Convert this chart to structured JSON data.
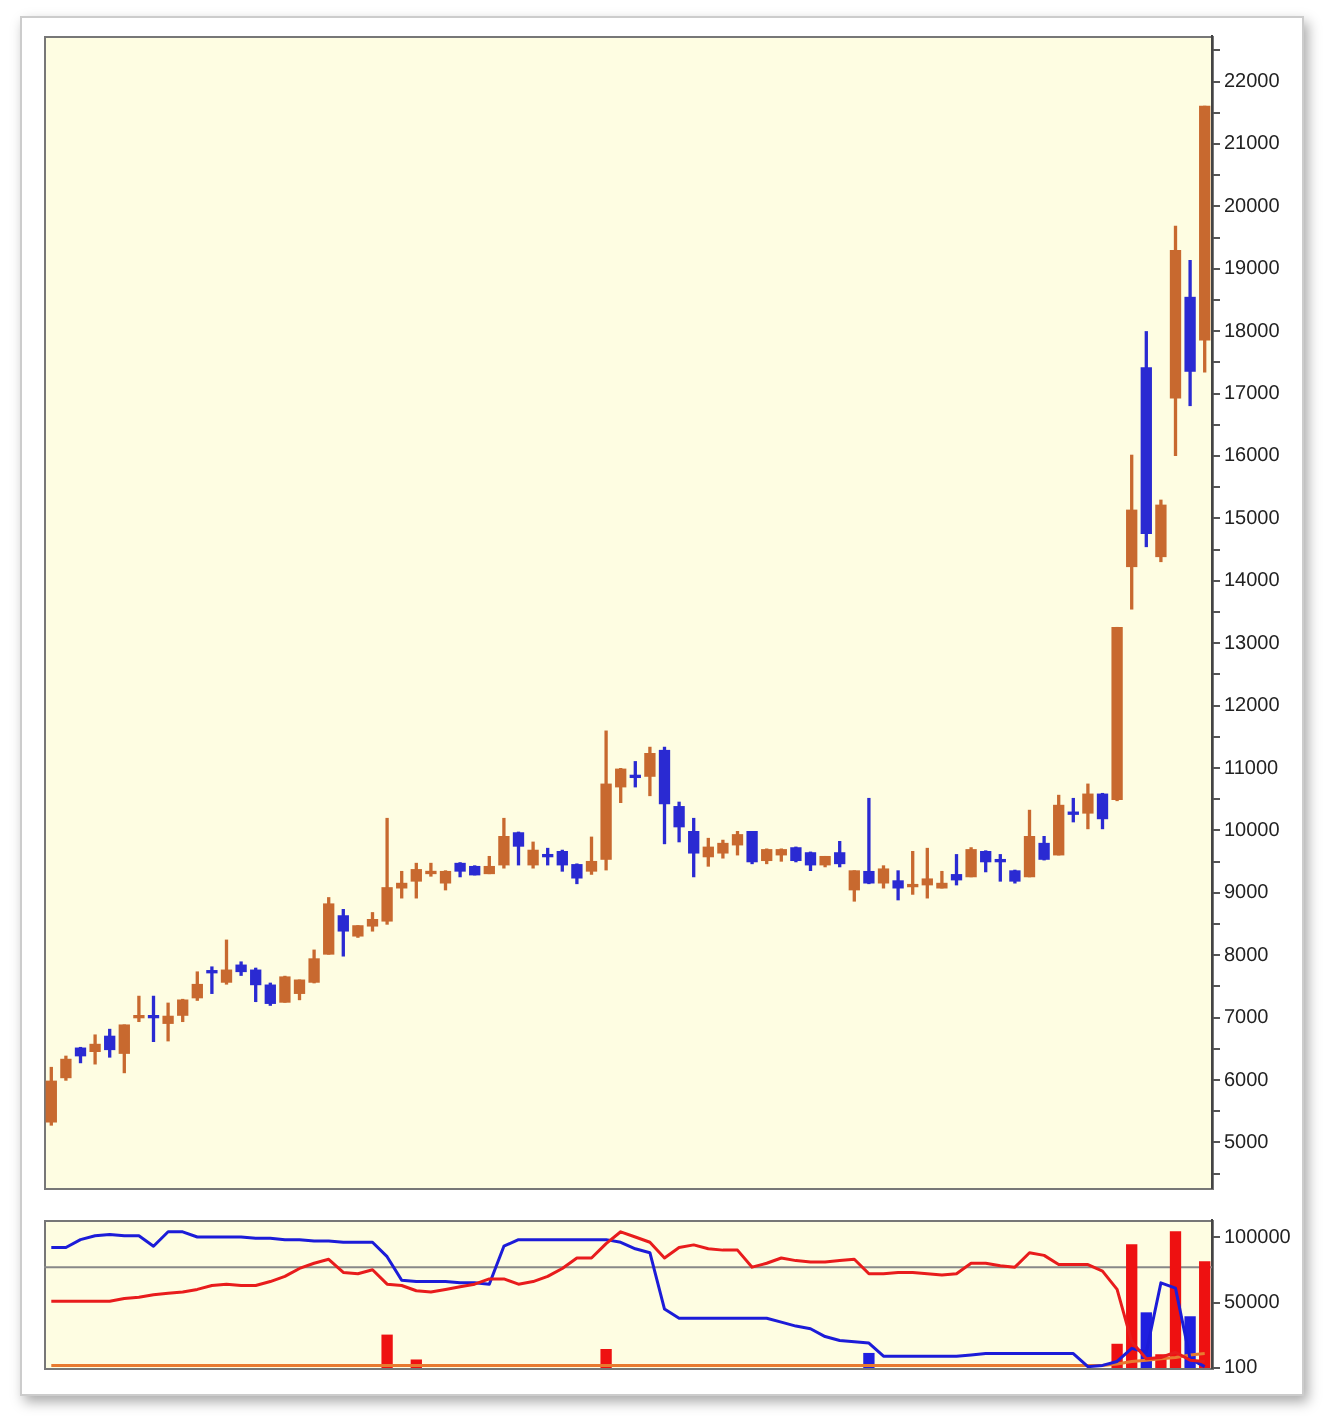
{
  "chart_data": [
    {
      "type": "candlestick",
      "categories": [
        null,
        null,
        null,
        null,
        null,
        null,
        null,
        null,
        null,
        null,
        null,
        null,
        null,
        null,
        null,
        null,
        null,
        null,
        null,
        null,
        null,
        null,
        null,
        null,
        null,
        null,
        null,
        null,
        null,
        null,
        null,
        null,
        null,
        null,
        null,
        null,
        null,
        null,
        null,
        null,
        null,
        null,
        null,
        null,
        null,
        null,
        null,
        null,
        null,
        null,
        null,
        null,
        null,
        null,
        null,
        null,
        null,
        null,
        null,
        null,
        null,
        null,
        null,
        null,
        null,
        null,
        null,
        null,
        null,
        null,
        null,
        null,
        null,
        null,
        null,
        null,
        null,
        null,
        null,
        null
      ],
      "ohlc": [
        [
          5330,
          6200,
          5280,
          5980
        ],
        [
          6040,
          6380,
          6000,
          6330
        ],
        [
          6510,
          6520,
          6280,
          6390
        ],
        [
          6460,
          6720,
          6260,
          6570
        ],
        [
          6700,
          6810,
          6370,
          6490
        ],
        [
          6430,
          6880,
          6120,
          6880
        ],
        [
          7000,
          7340,
          6940,
          7020
        ],
        [
          7030,
          7340,
          6620,
          7000
        ],
        [
          6910,
          7230,
          6630,
          7020
        ],
        [
          7040,
          7290,
          6940,
          7280
        ],
        [
          7320,
          7730,
          7280,
          7530
        ],
        [
          7740,
          7810,
          7390,
          7720
        ],
        [
          7570,
          8240,
          7540,
          7760
        ],
        [
          7840,
          7890,
          7680,
          7740
        ],
        [
          7760,
          7790,
          7260,
          7530
        ],
        [
          7520,
          7550,
          7200,
          7230
        ],
        [
          7250,
          7660,
          7250,
          7650
        ],
        [
          7390,
          7600,
          7290,
          7600
        ],
        [
          7570,
          8080,
          7560,
          7940
        ],
        [
          8020,
          8920,
          8020,
          8820
        ],
        [
          8630,
          8730,
          7990,
          8390
        ],
        [
          8310,
          8470,
          8290,
          8470
        ],
        [
          8470,
          8680,
          8390,
          8570
        ],
        [
          8550,
          10190,
          8500,
          9080
        ],
        [
          9080,
          9340,
          8920,
          9150
        ],
        [
          9190,
          9470,
          8920,
          9370
        ],
        [
          9310,
          9470,
          9270,
          9320
        ],
        [
          9160,
          9350,
          9050,
          9340
        ],
        [
          9470,
          9480,
          9260,
          9350
        ],
        [
          9420,
          9430,
          9290,
          9290
        ],
        [
          9310,
          9580,
          9310,
          9420
        ],
        [
          9450,
          10190,
          9400,
          9900
        ],
        [
          9960,
          9970,
          9450,
          9750
        ],
        [
          9450,
          9810,
          9400,
          9680
        ],
        [
          9590,
          9710,
          9450,
          9580
        ],
        [
          9660,
          9680,
          9350,
          9450
        ],
        [
          9450,
          9460,
          9150,
          9240
        ],
        [
          9350,
          9890,
          9300,
          9500
        ],
        [
          9540,
          11590,
          9370,
          10740
        ],
        [
          10700,
          10990,
          10450,
          10980
        ],
        [
          10870,
          11100,
          10700,
          10850
        ],
        [
          10870,
          11330,
          10560,
          11230
        ],
        [
          11280,
          11330,
          9790,
          10430
        ],
        [
          10380,
          10450,
          9820,
          10060
        ],
        [
          9980,
          10190,
          9260,
          9640
        ],
        [
          9580,
          9870,
          9430,
          9730
        ],
        [
          9640,
          9840,
          9560,
          9790
        ],
        [
          9770,
          9980,
          9610,
          9930
        ],
        [
          9980,
          9980,
          9470,
          9500
        ],
        [
          9520,
          9700,
          9470,
          9690
        ],
        [
          9610,
          9700,
          9510,
          9690
        ],
        [
          9720,
          9730,
          9500,
          9520
        ],
        [
          9640,
          9650,
          9360,
          9450
        ],
        [
          9450,
          9580,
          9420,
          9580
        ],
        [
          9640,
          9820,
          9420,
          9470
        ],
        [
          9050,
          9350,
          8870,
          9350
        ],
        [
          9340,
          10510,
          9150,
          9160
        ],
        [
          9160,
          9430,
          9080,
          9380
        ],
        [
          9190,
          9350,
          8890,
          9080
        ],
        [
          9100,
          9660,
          8980,
          9120
        ],
        [
          9130,
          9710,
          8920,
          9220
        ],
        [
          9080,
          9340,
          9080,
          9150
        ],
        [
          9290,
          9610,
          9130,
          9210
        ],
        [
          9260,
          9720,
          9260,
          9690
        ],
        [
          9660,
          9670,
          9340,
          9500
        ],
        [
          9510,
          9610,
          9190,
          9500
        ],
        [
          9350,
          9360,
          9160,
          9190
        ],
        [
          9260,
          10320,
          9260,
          9900
        ],
        [
          9790,
          9900,
          9530,
          9540
        ],
        [
          9610,
          10560,
          9610,
          10400
        ],
        [
          10280,
          10510,
          10140,
          10260
        ],
        [
          10280,
          10740,
          10030,
          10580
        ],
        [
          10580,
          10590,
          10030,
          10190
        ],
        [
          10500,
          13250,
          10480,
          13250
        ],
        [
          14230,
          16010,
          13550,
          15130
        ],
        [
          17410,
          17990,
          14550,
          14760
        ],
        [
          14390,
          15290,
          14310,
          15210
        ],
        [
          16930,
          19680,
          16010,
          19290
        ],
        [
          18540,
          19130,
          16810,
          17360
        ],
        [
          17860,
          21600,
          17350,
          21600
        ]
      ],
      "colors": [
        "#c8692f",
        "#c8692f",
        "#2a2ad2",
        "#c8692f",
        "#2a2ad2",
        "#c8692f",
        "#c8692f",
        "#2a2ad2",
        "#c8692f",
        "#c8692f",
        "#c8692f",
        "#2a2ad2",
        "#c8692f",
        "#2a2ad2",
        "#2a2ad2",
        "#2a2ad2",
        "#c8692f",
        "#c8692f",
        "#c8692f",
        "#c8692f",
        "#2a2ad2",
        "#c8692f",
        "#c8692f",
        "#c8692f",
        "#c8692f",
        "#c8692f",
        "#c8692f",
        "#c8692f",
        "#2a2ad2",
        "#2a2ad2",
        "#c8692f",
        "#c8692f",
        "#2a2ad2",
        "#c8692f",
        "#2a2ad2",
        "#2a2ad2",
        "#2a2ad2",
        "#c8692f",
        "#c8692f",
        "#c8692f",
        "#2a2ad2",
        "#c8692f",
        "#2a2ad2",
        "#2a2ad2",
        "#2a2ad2",
        "#c8692f",
        "#c8692f",
        "#c8692f",
        "#2a2ad2",
        "#c8692f",
        "#c8692f",
        "#2a2ad2",
        "#2a2ad2",
        "#c8692f",
        "#2a2ad2",
        "#c8692f",
        "#2a2ad2",
        "#c8692f",
        "#2a2ad2",
        "#c8692f",
        "#c8692f",
        "#c8692f",
        "#2a2ad2",
        "#c8692f",
        "#2a2ad2",
        "#2a2ad2",
        "#2a2ad2",
        "#c8692f",
        "#2a2ad2",
        "#c8692f",
        "#2a2ad2",
        "#c8692f",
        "#2a2ad2",
        "#c8692f",
        "#c8692f",
        "#2a2ad2",
        "#c8692f",
        "#c8692f",
        "#2a2ad2",
        "#c8692f"
      ],
      "ylim": [
        4270,
        22730
      ],
      "yticks": [
        {
          "value": 4500,
          "label": null
        },
        5000,
        {
          "value": 5500,
          "label": null
        },
        6000,
        {
          "value": 6500,
          "label": null
        },
        7000,
        {
          "value": 7500,
          "label": null
        },
        8000,
        {
          "value": 8500,
          "label": null
        },
        9000,
        {
          "value": 9500,
          "label": null
        },
        10000,
        {
          "value": 10500,
          "label": null
        },
        11000,
        {
          "value": 11500,
          "label": null
        },
        12000,
        {
          "value": 12500,
          "label": null
        },
        13000,
        {
          "value": 13500,
          "label": null
        },
        14000,
        {
          "value": 14500,
          "label": null
        },
        15000,
        {
          "value": 15500,
          "label": null
        },
        16000,
        {
          "value": 16500,
          "label": null
        },
        17000,
        {
          "value": 17500,
          "label": null
        },
        18000,
        {
          "value": 18500,
          "label": null
        },
        19000,
        {
          "value": 19500,
          "label": null
        },
        20000,
        {
          "value": 20500,
          "label": null
        },
        21000,
        {
          "value": 21500,
          "label": null
        },
        22000,
        {
          "value": 22500,
          "label": null
        }
      ],
      "grid": false,
      "tick_labels": "y"
    },
    {
      "type": "line",
      "categories": [
        null,
        null,
        null,
        null,
        null,
        null,
        null,
        null,
        null,
        null,
        null,
        null,
        null,
        null,
        null,
        null,
        null,
        null,
        null,
        null,
        null,
        null,
        null,
        null,
        null,
        null,
        null,
        null,
        null,
        null,
        null,
        null,
        null,
        null,
        null,
        null,
        null,
        null,
        null,
        null,
        null,
        null,
        null,
        null,
        null,
        null,
        null,
        null,
        null,
        null,
        null,
        null,
        null,
        null,
        null,
        null,
        null,
        null,
        null,
        null,
        null,
        null,
        null,
        null,
        null,
        null,
        null,
        null,
        null,
        null,
        null,
        null,
        null,
        null,
        null,
        null,
        null,
        null,
        null,
        null
      ],
      "series": [
        {
          "type": "bar",
          "colors": [
            "#ee1111",
            "#ee1111",
            "#1f1fe0",
            "#ee1111",
            "#1f1fe0",
            "#ee1111",
            "#ee1111",
            "#1f1fe0",
            "#ee1111",
            "#ee1111",
            "#ee1111",
            "#1f1fe0",
            "#ee1111",
            "#1f1fe0",
            "#1f1fe0",
            "#1f1fe0",
            "#ee1111",
            "#ee1111",
            "#ee1111",
            "#ee1111",
            "#1f1fe0",
            "#ee1111",
            "#ee1111",
            "#ee1111",
            "#ee1111",
            "#ee1111",
            "#ee1111",
            "#ee1111",
            "#1f1fe0",
            "#1f1fe0",
            "#ee1111",
            "#ee1111",
            "#1f1fe0",
            "#ee1111",
            "#1f1fe0",
            "#1f1fe0",
            "#1f1fe0",
            "#ee1111",
            "#ee1111",
            "#ee1111",
            "#1f1fe0",
            "#ee1111",
            "#1f1fe0",
            "#1f1fe0",
            "#1f1fe0",
            "#ee1111",
            "#ee1111",
            "#ee1111",
            "#1f1fe0",
            "#ee1111",
            "#ee1111",
            "#1f1fe0",
            "#1f1fe0",
            "#ee1111",
            "#1f1fe0",
            "#ee1111",
            "#1f1fe0",
            "#ee1111",
            "#1f1fe0",
            "#ee1111",
            "#ee1111",
            "#ee1111",
            "#1f1fe0",
            "#ee1111",
            "#1f1fe0",
            "#1f1fe0",
            "#1f1fe0",
            "#ee1111",
            "#1f1fe0",
            "#ee1111",
            "#1f1fe0",
            "#ee1111",
            "#1f1fe0",
            "#ee1111",
            "#ee1111",
            "#1f1fe0",
            "#ee1111",
            "#ee1111",
            "#1f1fe0",
            "#ee1111"
          ],
          "values": [
            null,
            null,
            null,
            null,
            null,
            null,
            null,
            null,
            null,
            null,
            null,
            null,
            null,
            null,
            null,
            null,
            null,
            null,
            null,
            null,
            null,
            null,
            null,
            25000,
            null,
            6000,
            null,
            null,
            null,
            null,
            null,
            null,
            null,
            null,
            null,
            null,
            null,
            null,
            14000,
            null,
            null,
            null,
            null,
            null,
            null,
            null,
            null,
            null,
            null,
            null,
            null,
            null,
            null,
            null,
            null,
            null,
            11000,
            null,
            null,
            null,
            null,
            null,
            null,
            null,
            null,
            null,
            null,
            null,
            null,
            null,
            null,
            null,
            null,
            18000,
            94000,
            42000,
            10000,
            104000,
            39000,
            81000
          ]
        },
        {
          "type": "line",
          "color": "#e81c1c",
          "values": [
            51000,
            51000,
            51000,
            51000,
            51000,
            53000,
            54000,
            56000,
            57000,
            58000,
            60000,
            63000,
            64000,
            63000,
            63000,
            66000,
            70000,
            76000,
            80000,
            83000,
            73000,
            72000,
            75000,
            64000,
            63000,
            59000,
            58000,
            60000,
            62000,
            64000,
            68000,
            68000,
            64000,
            66000,
            70000,
            76000,
            84000,
            84000,
            95000,
            104000,
            100000,
            96000,
            84000,
            92000,
            94000,
            91000,
            90000,
            90000,
            77000,
            80000,
            84000,
            82000,
            81000,
            81000,
            82000,
            83000,
            72000,
            72000,
            73000,
            73000,
            72000,
            71000,
            72000,
            80000,
            80000,
            78000,
            77000,
            88000,
            86000,
            79000,
            79000,
            79000,
            74000,
            60000,
            20000,
            7000,
            8000,
            12000,
            6000,
            5000
          ]
        },
        {
          "type": "line",
          "color": "#1c1cd8",
          "values": [
            92000,
            92000,
            98000,
            101000,
            102000,
            101000,
            101000,
            93000,
            104000,
            104000,
            100000,
            100000,
            100000,
            100000,
            99000,
            99000,
            98000,
            98000,
            97000,
            97000,
            96000,
            96000,
            96000,
            85000,
            67000,
            66000,
            66000,
            66000,
            65000,
            65000,
            64000,
            93000,
            98000,
            98000,
            98000,
            98000,
            98000,
            98000,
            98000,
            96000,
            91000,
            88000,
            45000,
            38000,
            38000,
            38000,
            38000,
            38000,
            38000,
            38000,
            35000,
            32000,
            30000,
            24000,
            21000,
            20000,
            19000,
            9000,
            9000,
            9000,
            9000,
            9000,
            9000,
            10000,
            11000,
            11000,
            11000,
            11000,
            11000,
            11000,
            11000,
            1000,
            2000,
            5000,
            15000,
            12000,
            65000,
            61000,
            7000,
            1000
          ]
        },
        {
          "type": "line",
          "color": "#e87a30",
          "values": [
            2000,
            2000,
            2000,
            2000,
            2000,
            2000,
            2000,
            2000,
            2000,
            2000,
            2000,
            2000,
            2000,
            2000,
            2000,
            2000,
            2000,
            2000,
            2000,
            2000,
            2000,
            2000,
            2000,
            2000,
            2000,
            2000,
            2000,
            2000,
            2000,
            2000,
            2000,
            2000,
            2000,
            2000,
            2000,
            2000,
            2000,
            2000,
            2000,
            2000,
            2000,
            2000,
            2000,
            2000,
            2000,
            2000,
            2000,
            2000,
            2000,
            2000,
            2000,
            2000,
            2000,
            2000,
            2000,
            2000,
            2000,
            2000,
            2000,
            2000,
            2000,
            2000,
            2000,
            2000,
            2000,
            2000,
            2000,
            2000,
            2000,
            2000,
            2000,
            2000,
            2000,
            3000,
            5000,
            6000,
            7000,
            8000,
            10000,
            11000
          ]
        }
      ],
      "ylim": [
        0,
        113000
      ],
      "yticks": [
        100,
        50000,
        100000
      ],
      "ref_lines": [
        {
          "axis": "y",
          "value": 77000,
          "color": "#888888"
        }
      ],
      "marker": "none",
      "grid": false,
      "tick_labels": "y"
    }
  ]
}
